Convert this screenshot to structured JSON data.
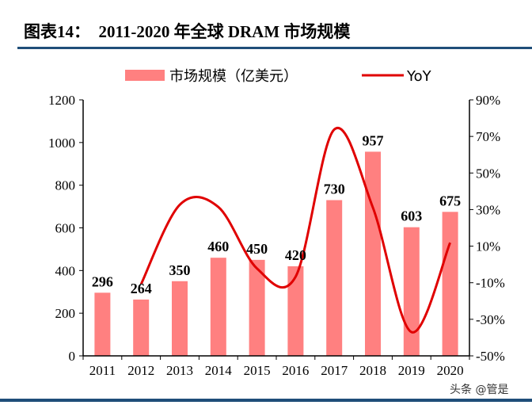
{
  "title": "图表14：  2011-2020 年全球 DRAM 市场规模",
  "watermark": "头条 @管是",
  "chart_data": {
    "type": "bar+line",
    "categories": [
      "2011",
      "2012",
      "2013",
      "2014",
      "2015",
      "2016",
      "2017",
      "2018",
      "2019",
      "2020"
    ],
    "series": [
      {
        "name": "市场规模（亿美元）",
        "type": "bar",
        "axis": "left",
        "color": "#ff8080",
        "values": [
          296,
          264,
          350,
          460,
          450,
          420,
          730,
          957,
          603,
          675
        ]
      },
      {
        "name": "YoY",
        "type": "line",
        "axis": "right",
        "color": "#e00000",
        "smooth": true,
        "values": [
          null,
          -10.8,
          32.6,
          31.4,
          -2.2,
          -6.7,
          73.8,
          31.1,
          -37.0,
          11.9
        ]
      }
    ],
    "data_labels": [
      "296",
      "264",
      "350",
      "460",
      "450",
      "420",
      "730",
      "957",
      "603",
      "675"
    ],
    "left_axis": {
      "range": [
        0,
        1200
      ],
      "ticks": [
        "0",
        "200",
        "400",
        "600",
        "800",
        "1000",
        "1200"
      ]
    },
    "right_axis": {
      "range": [
        -50,
        90
      ],
      "ticks": [
        "-50%",
        "-30%",
        "-10%",
        "10%",
        "30%",
        "50%",
        "70%",
        "90%"
      ]
    },
    "legend_placement": "top",
    "grid": false
  }
}
